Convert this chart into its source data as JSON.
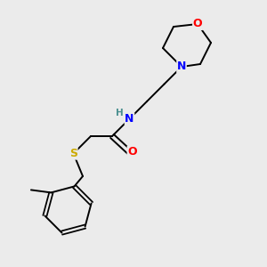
{
  "background_color": "#ebebeb",
  "atom_colors": {
    "C": "#000000",
    "N": "#0000ff",
    "O": "#ff0000",
    "S": "#ccaa00",
    "H": "#4a8f8f"
  },
  "bond_color": "#000000",
  "line_width": 1.4
}
